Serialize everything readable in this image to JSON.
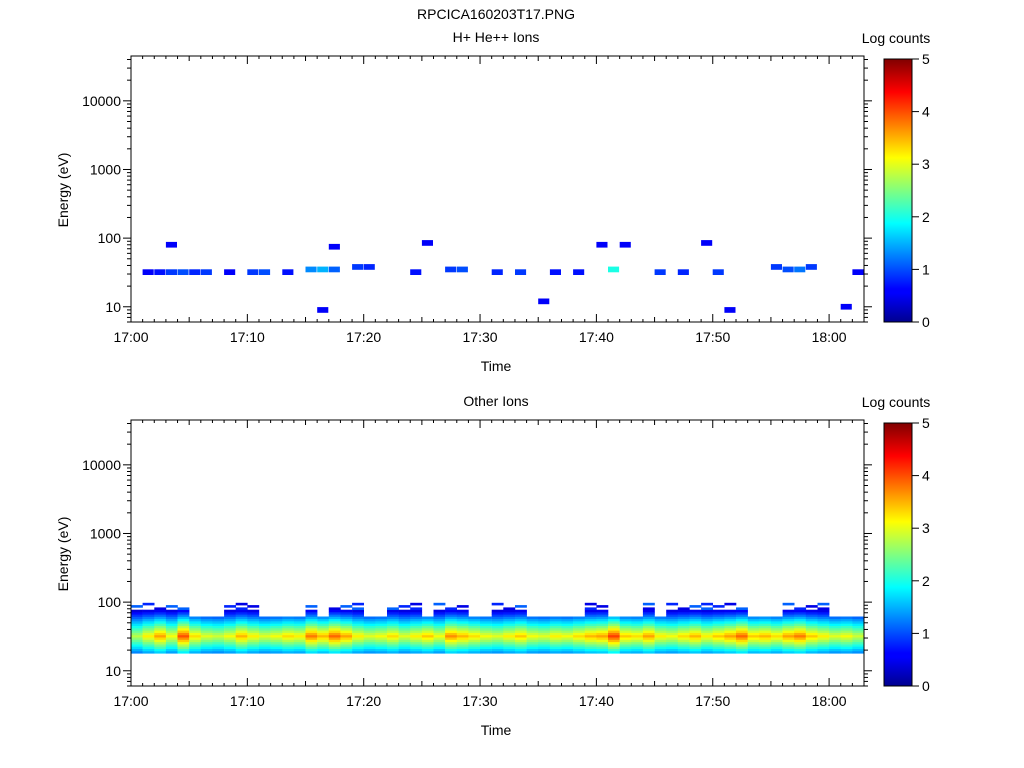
{
  "figure_title": "RPCICA160203T17.PNG",
  "chart_data": [
    {
      "type": "heatmap",
      "title": "H+ He++ Ions",
      "xlabel": "Time",
      "ylabel": "Energy (eV)",
      "x_ticks": [
        "17:00",
        "17:10",
        "17:20",
        "17:30",
        "17:40",
        "17:50",
        "18:00"
      ],
      "x_range_minutes": [
        0,
        63
      ],
      "y_scale": "log",
      "y_ticks": [
        "10",
        "100",
        "1000",
        "10000"
      ],
      "y_range": [
        6,
        45000
      ],
      "colorbar": {
        "label": "Log counts",
        "range": [
          0,
          5
        ],
        "ticks": [
          "0",
          "1",
          "2",
          "3",
          "4",
          "5"
        ]
      },
      "cells": [
        [
          1,
          32,
          0.6
        ],
        [
          2,
          32,
          0.7
        ],
        [
          3,
          32,
          0.9
        ],
        [
          4,
          32,
          1.0
        ],
        [
          5,
          32,
          0.8
        ],
        [
          6,
          32,
          0.9
        ],
        [
          8,
          32,
          0.6
        ],
        [
          10,
          32,
          0.9
        ],
        [
          11,
          32,
          1.0
        ],
        [
          13,
          32,
          0.7
        ],
        [
          15,
          35,
          1.3
        ],
        [
          16,
          35,
          1.5
        ],
        [
          17,
          35,
          1.1
        ],
        [
          19,
          38,
          0.9
        ],
        [
          20,
          38,
          0.8
        ],
        [
          24,
          32,
          0.7
        ],
        [
          27,
          35,
          0.9
        ],
        [
          28,
          35,
          1.0
        ],
        [
          31,
          32,
          0.8
        ],
        [
          33,
          32,
          0.9
        ],
        [
          36,
          32,
          0.7
        ],
        [
          38,
          32,
          0.7
        ],
        [
          41,
          35,
          2.0
        ],
        [
          45,
          32,
          0.9
        ],
        [
          47,
          32,
          0.8
        ],
        [
          50,
          32,
          0.9
        ],
        [
          55,
          38,
          0.9
        ],
        [
          56,
          35,
          1.0
        ],
        [
          57,
          35,
          1.2
        ],
        [
          58,
          38,
          0.9
        ],
        [
          62,
          32,
          0.6
        ],
        [
          3,
          80,
          0.6
        ],
        [
          17,
          75,
          0.6
        ],
        [
          25,
          85,
          0.6
        ],
        [
          40,
          80,
          0.6
        ],
        [
          42,
          80,
          0.6
        ],
        [
          49,
          85,
          0.6
        ],
        [
          16,
          9,
          0.6
        ],
        [
          35,
          12,
          0.6
        ],
        [
          51,
          9,
          0.6
        ],
        [
          61,
          10,
          0.6
        ]
      ]
    },
    {
      "type": "heatmap",
      "title": "Other Ions",
      "xlabel": "Time",
      "ylabel": "Energy (eV)",
      "x_ticks": [
        "17:00",
        "17:10",
        "17:20",
        "17:30",
        "17:40",
        "17:50",
        "18:00"
      ],
      "x_range_minutes": [
        0,
        63
      ],
      "y_scale": "log",
      "y_ticks": [
        "10",
        "100",
        "1000",
        "10000"
      ],
      "y_range": [
        6,
        45000
      ],
      "colorbar": {
        "label": "Log counts",
        "range": [
          0,
          5
        ],
        "ticks": [
          "0",
          "1",
          "2",
          "3",
          "4",
          "5"
        ]
      },
      "band_peak_log_counts": [
        2.8,
        3.2,
        3.6,
        3.1,
        4.0,
        3.3,
        3.0,
        2.9,
        3.1,
        3.5,
        3.2,
        3.0,
        3.1,
        3.3,
        3.2,
        3.8,
        3.5,
        3.9,
        3.6,
        3.2,
        3.0,
        3.1,
        3.3,
        3.0,
        3.2,
        3.4,
        3.1,
        3.7,
        3.5,
        3.3,
        3.1,
        3.0,
        3.2,
        3.4,
        3.1,
        3.0,
        3.2,
        3.1,
        3.3,
        3.5,
        3.6,
        4.1,
        3.4,
        3.3,
        3.6,
        3.2,
        3.1,
        3.3,
        3.5,
        3.2,
        3.4,
        3.6,
        3.9,
        3.4,
        3.5,
        3.3,
        3.6,
        3.8,
        3.4,
        3.2,
        3.0,
        3.1,
        2.9
      ],
      "band_top_energy_eV": [
        95,
        95,
        95,
        95,
        90,
        60,
        60,
        60,
        95,
        95,
        95,
        60,
        60,
        60,
        60,
        95,
        60,
        95,
        95,
        95,
        60,
        60,
        95,
        95,
        95,
        60,
        95,
        95,
        95,
        60,
        60,
        95,
        95,
        95,
        60,
        60,
        60,
        60,
        60,
        95,
        95,
        60,
        60,
        60,
        95,
        60,
        95,
        95,
        95,
        95,
        95,
        95,
        95,
        60,
        60,
        60,
        95,
        95,
        95,
        95,
        60,
        60,
        60
      ]
    }
  ]
}
